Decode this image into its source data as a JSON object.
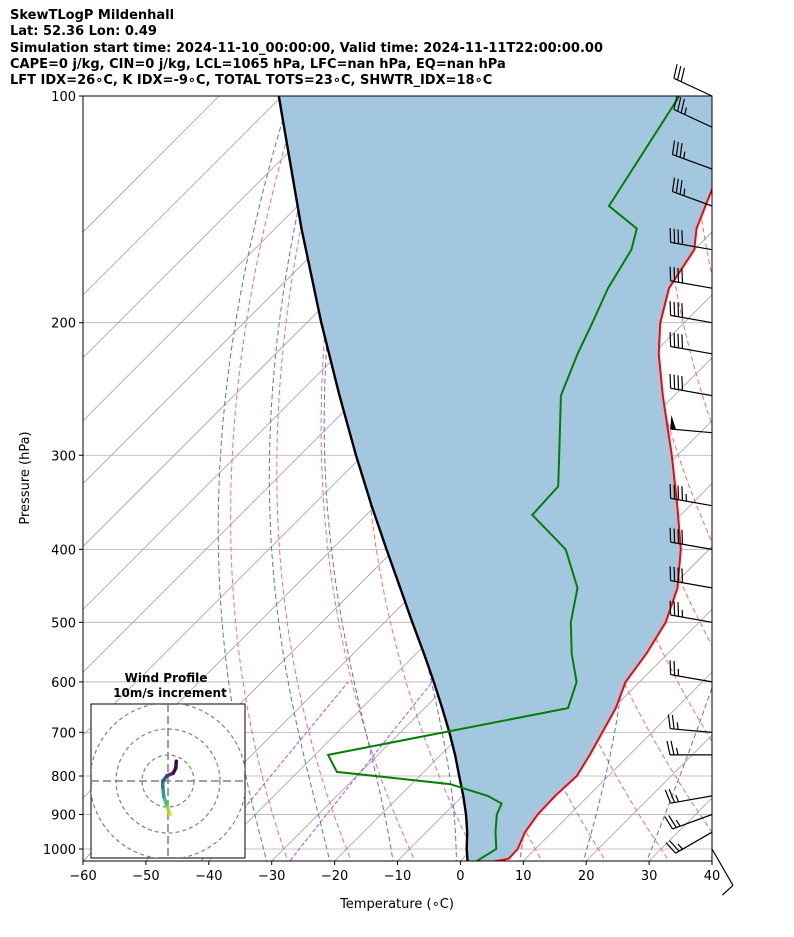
{
  "header": {
    "line1": "SkewTLogP Mildenhall",
    "line2": "Lat: 52.36   Lon: 0.49",
    "line3": "Simulation start time: 2024-11-10_00:00:00, Valid time: 2024-11-11T22:00:00.00",
    "line4": "CAPE=0 j/kg, CIN=0 j/kg, LCL=1065 hPa, LFC=nan hPa, EQ=nan hPa",
    "line5": "LFT IDX=26∘C, K IDX=-9∘C, TOTAL TOTS=23∘C, SHWTR_IDX=18∘C"
  },
  "chart_data": {
    "type": "skew-t",
    "xlabel": "Temperature (∘C)",
    "ylabel": "Pressure (hPa)",
    "xlim": [
      -60,
      40
    ],
    "ylim": [
      1050,
      100
    ],
    "x_ticks": [
      -60,
      -50,
      -40,
      -30,
      -20,
      -10,
      0,
      10,
      20,
      30,
      40
    ],
    "y_ticks": [
      100,
      200,
      300,
      400,
      500,
      600,
      700,
      800,
      900,
      1000
    ],
    "temperature": {
      "color": "#ff0000",
      "points": [
        [
          1050,
          3.0
        ],
        [
          1030,
          7.3
        ],
        [
          1000,
          7.2
        ],
        [
          950,
          5.7
        ],
        [
          900,
          4.9
        ],
        [
          850,
          4.7
        ],
        [
          800,
          5.0
        ],
        [
          750,
          3.7
        ],
        [
          700,
          2.1
        ],
        [
          650,
          0.4
        ],
        [
          600,
          -2.2
        ],
        [
          550,
          -3.4
        ],
        [
          500,
          -5.3
        ],
        [
          450,
          -8.9
        ],
        [
          400,
          -14.5
        ],
        [
          350,
          -22.0
        ],
        [
          300,
          -30.9
        ],
        [
          250,
          -41.8
        ],
        [
          220,
          -49.1
        ],
        [
          200,
          -53.8
        ],
        [
          180,
          -57.9
        ],
        [
          160,
          -60.0
        ],
        [
          150,
          -63.0
        ],
        [
          130,
          -67.5
        ],
        [
          120,
          -70.8
        ],
        [
          110,
          -73.7
        ],
        [
          100,
          -76.6
        ]
      ]
    },
    "dewpoint": {
      "color": "#008000",
      "points": [
        [
          1050,
          2.2
        ],
        [
          1000,
          3.8
        ],
        [
          950,
          1.0
        ],
        [
          900,
          -1.6
        ],
        [
          870,
          -2.6
        ],
        [
          850,
          -6.0
        ],
        [
          820,
          -13.9
        ],
        [
          790,
          -33.8
        ],
        [
          750,
          -37.9
        ],
        [
          650,
          -7.2
        ],
        [
          600,
          -10.0
        ],
        [
          550,
          -15.3
        ],
        [
          500,
          -20.4
        ],
        [
          450,
          -24.8
        ],
        [
          400,
          -32.8
        ],
        [
          360,
          -43.6
        ],
        [
          330,
          -44.0
        ],
        [
          300,
          -48.8
        ],
        [
          250,
          -58.0
        ],
        [
          220,
          -62.0
        ],
        [
          200,
          -64.6
        ],
        [
          180,
          -67.6
        ],
        [
          160,
          -70.0
        ],
        [
          150,
          -72.5
        ],
        [
          140,
          -80.5
        ],
        [
          100,
          -86.8
        ]
      ]
    },
    "parcel": {
      "color": "#000000",
      "points": [
        [
          1050,
          1.8
        ],
        [
          1000,
          -0.9
        ],
        [
          950,
          -3.5
        ],
        [
          900,
          -6.5
        ],
        [
          850,
          -9.9
        ],
        [
          800,
          -13.7
        ],
        [
          750,
          -17.7
        ],
        [
          700,
          -22.2
        ],
        [
          650,
          -27.2
        ],
        [
          600,
          -32.7
        ],
        [
          550,
          -38.8
        ],
        [
          500,
          -45.6
        ],
        [
          450,
          -53.0
        ],
        [
          400,
          -61.3
        ],
        [
          350,
          -70.6
        ],
        [
          300,
          -81.1
        ],
        [
          250,
          -93.2
        ],
        [
          200,
          -107.7
        ],
        [
          150,
          -125.8
        ],
        [
          110,
          -144.7
        ],
        [
          100,
          -150.5
        ]
      ]
    },
    "cape_shading": "#a4c7e0",
    "isotherm_color": "#a0a0a0",
    "dry_adiabat_color": "#ff6b6b",
    "moist_adiabat_color": "#5a6cf0",
    "mixing_ratio_color": "#a020f0",
    "wind_barbs": [
      {
        "p": 1000,
        "kt": 10,
        "dir": 150
      },
      {
        "p": 950,
        "kt": 25,
        "dir": 240
      },
      {
        "p": 900,
        "kt": 25,
        "dir": 250
      },
      {
        "p": 850,
        "kt": 25,
        "dir": 260
      },
      {
        "p": 750,
        "kt": 25,
        "dir": 270
      },
      {
        "p": 700,
        "kt": 25,
        "dir": 275
      },
      {
        "p": 600,
        "kt": 25,
        "dir": 280
      },
      {
        "p": 500,
        "kt": 35,
        "dir": 280
      },
      {
        "p": 450,
        "kt": 40,
        "dir": 280
      },
      {
        "p": 400,
        "kt": 40,
        "dir": 280
      },
      {
        "p": 350,
        "kt": 45,
        "dir": 280
      },
      {
        "p": 280,
        "kt": 50,
        "dir": 275
      },
      {
        "p": 250,
        "kt": 40,
        "dir": 280
      },
      {
        "p": 220,
        "kt": 40,
        "dir": 280
      },
      {
        "p": 200,
        "kt": 40,
        "dir": 280
      },
      {
        "p": 180,
        "kt": 40,
        "dir": 280
      },
      {
        "p": 160,
        "kt": 40,
        "dir": 280
      },
      {
        "p": 140,
        "kt": 35,
        "dir": 290
      },
      {
        "p": 125,
        "kt": 35,
        "dir": 290
      },
      {
        "p": 110,
        "kt": 35,
        "dir": 295
      },
      {
        "p": 100,
        "kt": 30,
        "dir": 295
      }
    ],
    "hodograph": {
      "title": "Wind Profile",
      "subtitle": "10m/s increment",
      "points": [
        [
          0.5,
          -6.5
        ],
        [
          0.2,
          -6.0
        ],
        [
          -0.3,
          -4.5
        ],
        [
          -0.8,
          -3.0
        ],
        [
          -1.0,
          -1.2
        ],
        [
          -1.0,
          0.0
        ],
        [
          -0.2,
          1.0
        ],
        [
          1.0,
          1.5
        ],
        [
          1.5,
          2.5
        ],
        [
          1.6,
          3.8
        ]
      ]
    }
  }
}
